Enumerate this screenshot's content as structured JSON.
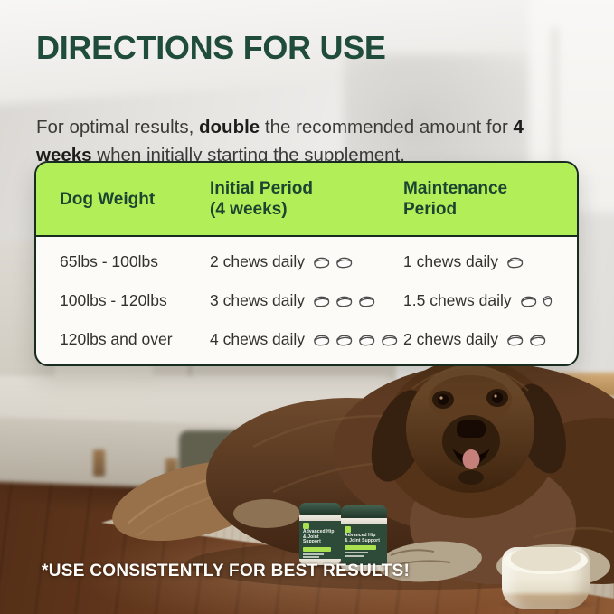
{
  "page": {
    "title": "DIRECTIONS FOR USE",
    "intro": {
      "part1": "For optimal results, ",
      "bold1": "double",
      "part2": " the recommended amount for ",
      "bold2": "4 weeks",
      "part3": " when initially starting the supplement."
    },
    "footnote": "*USE CONSISTENTLY FOR BEST RESULTS!"
  },
  "table": {
    "header": {
      "col1_line1": "Dog Weight",
      "col1_line2": "",
      "col2_line1": "Initial Period",
      "col2_line2": "(4 weeks)",
      "col3_line1": "Maintenance",
      "col3_line2": "Period"
    },
    "rows": [
      {
        "weight": "65lbs - 100lbs",
        "initial_text": "2 chews daily",
        "initial_chews": 2,
        "maintenance_text": "1 chews daily",
        "maintenance_chews": 1
      },
      {
        "weight": "100lbs - 120lbs",
        "initial_text": "3 chews daily",
        "initial_chews": 3,
        "maintenance_text": "1.5 chews daily",
        "maintenance_chews": 1.5
      },
      {
        "weight": "120lbs and over",
        "initial_text": "4 chews daily",
        "initial_chews": 4,
        "maintenance_text": "2 chews daily",
        "maintenance_chews": 2
      }
    ]
  },
  "product": {
    "name_line1": "Advanced Hip",
    "name_line2": "& Joint Support"
  },
  "icons": {
    "chew": "chew-icon"
  },
  "colors": {
    "title_green": "#1f4c3b",
    "header_lime": "#b2ee57",
    "card_border": "#182c20",
    "body_text": "#3c3b39",
    "footnote_white": "#fdfdfb"
  }
}
